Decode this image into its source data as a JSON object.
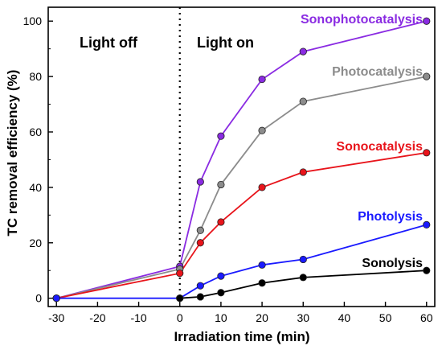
{
  "chart_data": {
    "type": "line",
    "xlabel": "Irradiation time (min)",
    "ylabel": "TC removal efficiency (%)",
    "xlim": [
      -32,
      62
    ],
    "ylim": [
      -3,
      105
    ],
    "xticks": [
      -30,
      -20,
      -10,
      0,
      10,
      20,
      30,
      40,
      50,
      60
    ],
    "yticks": [
      0,
      20,
      40,
      60,
      80,
      100
    ],
    "grid": false,
    "divider_x": 0,
    "region_labels": [
      {
        "text": "Light off"
      },
      {
        "text": "Light on"
      }
    ],
    "series": [
      {
        "name": "Sonophotocatalysis",
        "color": "#8a2be2",
        "x": [
          -30,
          0,
          5,
          10,
          20,
          30,
          60
        ],
        "y": [
          0,
          11.5,
          42,
          58.5,
          79,
          89,
          100
        ]
      },
      {
        "name": "Photocatalysis",
        "color": "#8c8c8c",
        "x": [
          -30,
          0,
          5,
          10,
          20,
          30,
          60
        ],
        "y": [
          0,
          10.5,
          24.5,
          41,
          60.5,
          71,
          80
        ]
      },
      {
        "name": "Sonocatalysis",
        "color": "#e8141b",
        "x": [
          -30,
          0,
          5,
          10,
          20,
          30,
          60
        ],
        "y": [
          0,
          9,
          20,
          27.5,
          40,
          45.5,
          52.5
        ]
      },
      {
        "name": "Photolysis",
        "color": "#1a1aff",
        "x": [
          -30,
          0,
          5,
          10,
          20,
          30,
          60
        ],
        "y": [
          0,
          0,
          4.5,
          8,
          12,
          14,
          26.5
        ]
      },
      {
        "name": "Sonolysis",
        "color": "#000000",
        "x": [
          0,
          5,
          10,
          20,
          30,
          60
        ],
        "y": [
          0,
          0.5,
          2,
          5.5,
          7.5,
          10
        ]
      }
    ]
  }
}
